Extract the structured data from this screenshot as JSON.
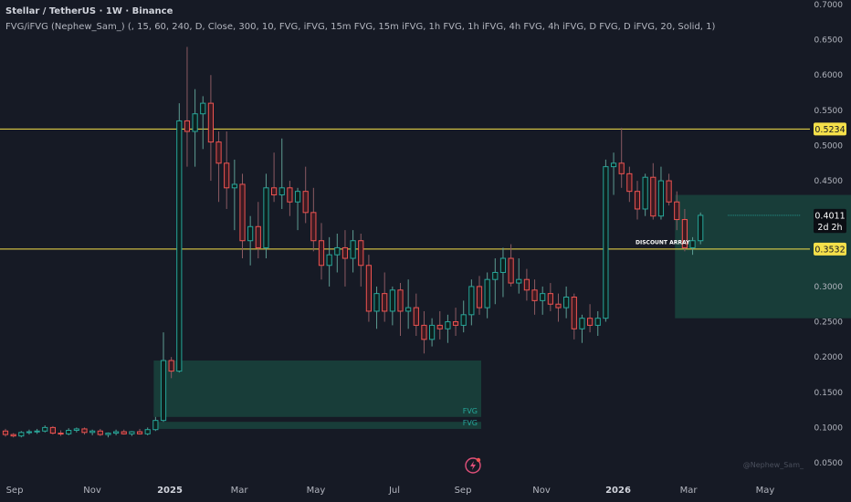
{
  "header": {
    "symbol": "Stellar / TetherUS · 1W · Binance",
    "indicator": "FVG/iFVG (Nephew_Sam_) (, 15, 60, 240, D, Close, 300, 10, FVG, iFVG, 15m FVG, 15m iFVG, 1h FVG, 1h iFVG, 4h FVG, 4h iFVG, D FVG, D iFVG, 20, Solid, 1)"
  },
  "watermark": "@Nephew_Sam_",
  "colors": {
    "bg": "#161a25",
    "up": "#26a69a",
    "down": "#ef5350",
    "level": "#f5e04a",
    "zone": "#1a4a40"
  },
  "chart_data": {
    "type": "candlestick",
    "y_axis": {
      "min": 0.05,
      "max": 0.7,
      "ticks": [
        "0.7000",
        "0.6500",
        "0.6000",
        "0.5500",
        "0.5000",
        "0.4500",
        "0.4000",
        "0.3500",
        "0.3000",
        "0.2500",
        "0.2000",
        "0.1500",
        "0.1000",
        "0.0500"
      ]
    },
    "x_axis": {
      "labels": [
        "Sep",
        "Nov",
        "2025",
        "Mar",
        "May",
        "Jul",
        "Sep",
        "Nov",
        "2026",
        "Mar",
        "May"
      ],
      "bold": [
        "2025",
        "2026"
      ]
    },
    "price_labels": [
      {
        "text": "0.5234",
        "value": 0.5234,
        "style": "level"
      },
      {
        "text": "0.4011",
        "value": 0.4011,
        "style": "current"
      },
      {
        "text": "2d 2h",
        "value": 0.385,
        "style": "countdown"
      },
      {
        "text": "0.3532",
        "value": 0.3532,
        "style": "level"
      }
    ],
    "levels": [
      {
        "value": 0.5234
      },
      {
        "value": 0.3532
      }
    ],
    "zones": [
      {
        "label": "FVG",
        "top": 0.195,
        "bottom": 0.115,
        "from": 19,
        "to": 60
      },
      {
        "label": "FVG",
        "top": 0.108,
        "bottom": 0.098,
        "from": 19,
        "to": 60
      },
      {
        "label": "FVG",
        "top": 0.43,
        "bottom": 0.255,
        "from": 85,
        "to": 126
      }
    ],
    "annotations": [
      {
        "text": "DISCOUNT ARRAY",
        "value": 0.36
      }
    ],
    "candles": [
      [
        0.095,
        0.098,
        0.087,
        0.09
      ],
      [
        0.09,
        0.092,
        0.086,
        0.088
      ],
      [
        0.088,
        0.095,
        0.086,
        0.093
      ],
      [
        0.093,
        0.097,
        0.09,
        0.094
      ],
      [
        0.094,
        0.098,
        0.091,
        0.095
      ],
      [
        0.095,
        0.103,
        0.093,
        0.1
      ],
      [
        0.1,
        0.102,
        0.09,
        0.092
      ],
      [
        0.092,
        0.096,
        0.088,
        0.091
      ],
      [
        0.091,
        0.099,
        0.089,
        0.096
      ],
      [
        0.096,
        0.1,
        0.093,
        0.098
      ],
      [
        0.098,
        0.1,
        0.09,
        0.093
      ],
      [
        0.093,
        0.097,
        0.089,
        0.095
      ],
      [
        0.095,
        0.098,
        0.088,
        0.09
      ],
      [
        0.09,
        0.093,
        0.086,
        0.092
      ],
      [
        0.092,
        0.097,
        0.089,
        0.094
      ],
      [
        0.094,
        0.097,
        0.09,
        0.091
      ],
      [
        0.091,
        0.095,
        0.088,
        0.094
      ],
      [
        0.094,
        0.098,
        0.09,
        0.091
      ],
      [
        0.091,
        0.1,
        0.089,
        0.097
      ],
      [
        0.097,
        0.115,
        0.095,
        0.11
      ],
      [
        0.11,
        0.235,
        0.108,
        0.195
      ],
      [
        0.195,
        0.2,
        0.17,
        0.18
      ],
      [
        0.18,
        0.56,
        0.178,
        0.535
      ],
      [
        0.535,
        0.64,
        0.47,
        0.52
      ],
      [
        0.52,
        0.58,
        0.47,
        0.545
      ],
      [
        0.545,
        0.57,
        0.495,
        0.56
      ],
      [
        0.56,
        0.6,
        0.45,
        0.505
      ],
      [
        0.505,
        0.52,
        0.42,
        0.475
      ],
      [
        0.475,
        0.52,
        0.41,
        0.44
      ],
      [
        0.44,
        0.48,
        0.38,
        0.445
      ],
      [
        0.445,
        0.46,
        0.34,
        0.365
      ],
      [
        0.365,
        0.4,
        0.33,
        0.385
      ],
      [
        0.385,
        0.42,
        0.34,
        0.355
      ],
      [
        0.355,
        0.46,
        0.34,
        0.44
      ],
      [
        0.44,
        0.49,
        0.42,
        0.43
      ],
      [
        0.43,
        0.51,
        0.41,
        0.44
      ],
      [
        0.44,
        0.45,
        0.4,
        0.42
      ],
      [
        0.42,
        0.44,
        0.38,
        0.435
      ],
      [
        0.435,
        0.47,
        0.39,
        0.405
      ],
      [
        0.405,
        0.44,
        0.35,
        0.365
      ],
      [
        0.365,
        0.39,
        0.31,
        0.33
      ],
      [
        0.33,
        0.37,
        0.3,
        0.345
      ],
      [
        0.345,
        0.375,
        0.32,
        0.355
      ],
      [
        0.355,
        0.38,
        0.3,
        0.34
      ],
      [
        0.34,
        0.38,
        0.32,
        0.365
      ],
      [
        0.365,
        0.375,
        0.3,
        0.33
      ],
      [
        0.33,
        0.345,
        0.25,
        0.265
      ],
      [
        0.265,
        0.3,
        0.24,
        0.29
      ],
      [
        0.29,
        0.32,
        0.25,
        0.265
      ],
      [
        0.265,
        0.3,
        0.245,
        0.295
      ],
      [
        0.295,
        0.305,
        0.23,
        0.265
      ],
      [
        0.265,
        0.31,
        0.24,
        0.27
      ],
      [
        0.27,
        0.29,
        0.23,
        0.245
      ],
      [
        0.245,
        0.265,
        0.205,
        0.225
      ],
      [
        0.225,
        0.255,
        0.215,
        0.245
      ],
      [
        0.245,
        0.265,
        0.225,
        0.24
      ],
      [
        0.24,
        0.26,
        0.22,
        0.25
      ],
      [
        0.25,
        0.27,
        0.23,
        0.245
      ],
      [
        0.245,
        0.28,
        0.235,
        0.26
      ],
      [
        0.26,
        0.31,
        0.245,
        0.3
      ],
      [
        0.3,
        0.315,
        0.26,
        0.27
      ],
      [
        0.27,
        0.32,
        0.255,
        0.31
      ],
      [
        0.31,
        0.34,
        0.275,
        0.32
      ],
      [
        0.32,
        0.355,
        0.285,
        0.34
      ],
      [
        0.34,
        0.36,
        0.3,
        0.305
      ],
      [
        0.305,
        0.34,
        0.29,
        0.31
      ],
      [
        0.31,
        0.325,
        0.28,
        0.295
      ],
      [
        0.295,
        0.31,
        0.26,
        0.28
      ],
      [
        0.28,
        0.3,
        0.26,
        0.29
      ],
      [
        0.29,
        0.305,
        0.265,
        0.275
      ],
      [
        0.275,
        0.29,
        0.25,
        0.27
      ],
      [
        0.27,
        0.3,
        0.255,
        0.285
      ],
      [
        0.285,
        0.29,
        0.225,
        0.24
      ],
      [
        0.24,
        0.26,
        0.22,
        0.255
      ],
      [
        0.255,
        0.275,
        0.235,
        0.245
      ],
      [
        0.245,
        0.265,
        0.23,
        0.255
      ],
      [
        0.255,
        0.48,
        0.25,
        0.47
      ],
      [
        0.47,
        0.49,
        0.43,
        0.475
      ],
      [
        0.475,
        0.525,
        0.44,
        0.46
      ],
      [
        0.46,
        0.47,
        0.42,
        0.435
      ],
      [
        0.435,
        0.45,
        0.395,
        0.41
      ],
      [
        0.41,
        0.46,
        0.4,
        0.455
      ],
      [
        0.455,
        0.475,
        0.395,
        0.4
      ],
      [
        0.4,
        0.47,
        0.395,
        0.45
      ],
      [
        0.45,
        0.46,
        0.415,
        0.42
      ],
      [
        0.42,
        0.435,
        0.38,
        0.395
      ],
      [
        0.395,
        0.41,
        0.35,
        0.355
      ],
      [
        0.355,
        0.37,
        0.345,
        0.365
      ],
      [
        0.365,
        0.405,
        0.36,
        0.401
      ]
    ]
  }
}
